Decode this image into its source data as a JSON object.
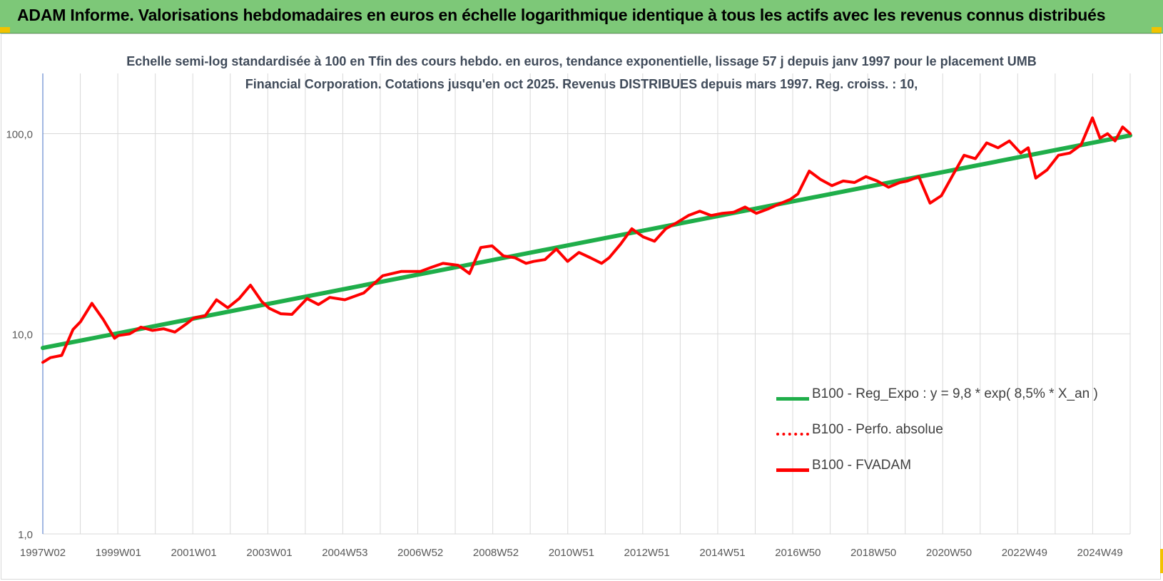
{
  "header": {
    "title": "ADAM Informe. Valorisations hebdomadaires en euros en échelle logarithmique identique à tous les actifs avec les revenus connus distribués",
    "background": "#7dc878"
  },
  "chart_data": {
    "type": "line",
    "title": "Echelle semi-log standardisée à 100 en Tfin des cours hebdo. en euros, tendance exponentielle, lissage 57 j depuis janv 1997 pour le placement UMB Financial Corporation. Cotations jusqu'en oct 2025. Revenus DISTRIBUES depuis mars 1997. Reg. croiss. : 10,",
    "xlabel": "",
    "ylabel": "",
    "y_scale": "log",
    "ylim": [
      1,
      200
    ],
    "xlim": [
      1997.0,
      2025.8
    ],
    "grid": true,
    "legend_position": "bottom-right",
    "y_ticks": [
      {
        "value": 1,
        "label": "1,0"
      },
      {
        "value": 10,
        "label": "10,0"
      },
      {
        "value": 100,
        "label": "100,0"
      }
    ],
    "x_ticks": [
      {
        "value": 1997.0,
        "label": "1997W02"
      },
      {
        "value": 1999.0,
        "label": "1999W01"
      },
      {
        "value": 2001.0,
        "label": "2001W01"
      },
      {
        "value": 2003.0,
        "label": "2003W01"
      },
      {
        "value": 2005.0,
        "label": "2004W53"
      },
      {
        "value": 2007.0,
        "label": "2006W52"
      },
      {
        "value": 2009.0,
        "label": "2008W52"
      },
      {
        "value": 2011.0,
        "label": "2010W51"
      },
      {
        "value": 2013.0,
        "label": "2012W51"
      },
      {
        "value": 2015.0,
        "label": "2014W51"
      },
      {
        "value": 2017.0,
        "label": "2016W50"
      },
      {
        "value": 2019.0,
        "label": "2018W50"
      },
      {
        "value": 2021.0,
        "label": "2020W50"
      },
      {
        "value": 2023.0,
        "label": "2022W49"
      },
      {
        "value": 2025.0,
        "label": "2024W49"
      }
    ],
    "series": [
      {
        "name": "B100 - Reg_Expo : y = 9,8 * exp( 8,5% *  X_an )",
        "color": "#1fae4a",
        "style": "solid",
        "x": [
          1997.0,
          2025.8
        ],
        "y": [
          8.5,
          98
        ]
      },
      {
        "name": "B100 - Perfo. absolue",
        "color": "#ff0000",
        "style": "dotted",
        "x": [],
        "y": []
      },
      {
        "name": "B100 - FVADAM",
        "color": "#ff0000",
        "style": "solid",
        "x": [
          1997.0,
          1997.2,
          1997.5,
          1997.8,
          1998.0,
          1998.3,
          1998.6,
          1998.9,
          1999.0,
          1999.3,
          1999.6,
          1999.9,
          2000.2,
          2000.5,
          2000.8,
          2001.0,
          2001.3,
          2001.6,
          2001.9,
          2002.2,
          2002.5,
          2002.8,
          2003.0,
          2003.3,
          2003.6,
          2004.0,
          2004.3,
          2004.6,
          2005.0,
          2005.5,
          2006.0,
          2006.5,
          2007.0,
          2007.3,
          2007.6,
          2008.0,
          2008.3,
          2008.6,
          2008.9,
          2009.2,
          2009.5,
          2009.8,
          2010.0,
          2010.3,
          2010.6,
          2010.9,
          2011.2,
          2011.5,
          2011.8,
          2012.0,
          2012.3,
          2012.6,
          2012.9,
          2013.2,
          2013.5,
          2013.8,
          2014.1,
          2014.4,
          2014.7,
          2015.0,
          2015.3,
          2015.6,
          2015.9,
          2016.2,
          2016.5,
          2016.8,
          2017.0,
          2017.3,
          2017.6,
          2017.9,
          2018.2,
          2018.5,
          2018.8,
          2019.1,
          2019.4,
          2019.7,
          2019.9,
          2020.2,
          2020.5,
          2020.8,
          2021.1,
          2021.4,
          2021.7,
          2022.0,
          2022.3,
          2022.6,
          2022.9,
          2023.1,
          2023.3,
          2023.6,
          2023.9,
          2024.2,
          2024.5,
          2024.8,
          2025.0,
          2025.2,
          2025.4,
          2025.6,
          2025.8
        ],
        "y": [
          7.2,
          7.6,
          7.8,
          10.5,
          11.5,
          14.2,
          11.8,
          9.5,
          9.8,
          10.0,
          10.8,
          10.4,
          10.6,
          10.2,
          11.2,
          12.0,
          12.3,
          14.8,
          13.5,
          15.0,
          17.5,
          14.5,
          13.4,
          12.6,
          12.5,
          15.0,
          14.0,
          15.2,
          14.8,
          16.0,
          19.5,
          20.5,
          20.5,
          21.5,
          22.5,
          22.0,
          20.0,
          27.0,
          27.5,
          24.5,
          24.0,
          22.5,
          23.0,
          23.5,
          26.5,
          23.0,
          25.5,
          24.0,
          22.5,
          24.0,
          28.0,
          33.5,
          30.5,
          29.0,
          33.5,
          36.0,
          39.0,
          41.0,
          39.0,
          40.0,
          40.5,
          43.0,
          40.0,
          42.0,
          44.5,
          47.0,
          50.0,
          65.0,
          59.0,
          55.0,
          58.0,
          57.0,
          61.0,
          58.0,
          54.0,
          57.0,
          58.0,
          61.0,
          45.0,
          49.0,
          62.0,
          78.0,
          75.0,
          90.0,
          85.0,
          92.0,
          80.0,
          85.0,
          60.0,
          66.0,
          78.0,
          80.0,
          88.0,
          120.0,
          95.0,
          100.0,
          92.0,
          108.0,
          100.0
        ]
      }
    ]
  }
}
